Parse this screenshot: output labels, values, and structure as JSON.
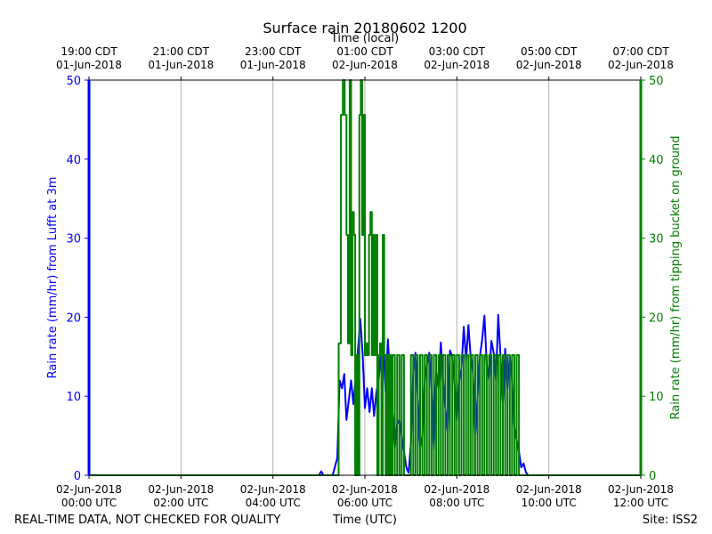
{
  "chart_data": {
    "type": "line",
    "title": "Surface rain 20180602 1200",
    "top_axis_label": "Time (local)",
    "xlabel": "Time (UTC)",
    "ylabel_left": "Rain rate (mm/hr) from Lufft at 3m",
    "ylabel_right": "Rain rate (mm/hr) from tipping bucket on ground",
    "footer_left": "REAL-TIME DATA, NOT CHECKED FOR QUALITY",
    "footer_right": "Site: ISS2",
    "xlim_utc_hours": [
      0,
      12
    ],
    "ylim_left": [
      0,
      50
    ],
    "ylim_right": [
      0,
      50
    ],
    "grid": "vertical only",
    "x_ticks_bottom": [
      {
        "hour": 0,
        "line1": "02-Jun-2018",
        "line2": "00:00 UTC"
      },
      {
        "hour": 2,
        "line1": "02-Jun-2018",
        "line2": "02:00 UTC"
      },
      {
        "hour": 4,
        "line1": "02-Jun-2018",
        "line2": "04:00 UTC"
      },
      {
        "hour": 6,
        "line1": "02-Jun-2018",
        "line2": "06:00 UTC"
      },
      {
        "hour": 8,
        "line1": "02-Jun-2018",
        "line2": "08:00 UTC"
      },
      {
        "hour": 10,
        "line1": "02-Jun-2018",
        "line2": "10:00 UTC"
      },
      {
        "hour": 12,
        "line1": "02-Jun-2018",
        "line2": "12:00 UTC"
      }
    ],
    "x_ticks_top": [
      {
        "hour": 0,
        "line1": "19:00 CDT",
        "line2": "01-Jun-2018"
      },
      {
        "hour": 2,
        "line1": "21:00 CDT",
        "line2": "01-Jun-2018"
      },
      {
        "hour": 4,
        "line1": "23:00 CDT",
        "line2": "01-Jun-2018"
      },
      {
        "hour": 6,
        "line1": "01:00 CDT",
        "line2": "02-Jun-2018"
      },
      {
        "hour": 8,
        "line1": "03:00 CDT",
        "line2": "02-Jun-2018"
      },
      {
        "hour": 10,
        "line1": "05:00 CDT",
        "line2": "02-Jun-2018"
      },
      {
        "hour": 12,
        "line1": "07:00 CDT",
        "line2": "02-Jun-2018"
      }
    ],
    "y_ticks_left": [
      0,
      10,
      20,
      30,
      40,
      50
    ],
    "y_ticks_right": [
      0,
      10,
      20,
      30,
      40,
      50
    ],
    "series": [
      {
        "axis": "left",
        "color": "#0000ff",
        "x": [
          0,
          5.0,
          5.05,
          5.1,
          5.2,
          5.3,
          5.4,
          5.45,
          5.5,
          5.55,
          5.6,
          5.65,
          5.7,
          5.75,
          5.8,
          5.85,
          5.9,
          5.95,
          6.0,
          6.05,
          6.1,
          6.15,
          6.2,
          6.25,
          6.3,
          6.35,
          6.4,
          6.45,
          6.5,
          6.55,
          6.6,
          6.65,
          6.7,
          6.75,
          6.8,
          6.85,
          6.9,
          6.95,
          7.0,
          7.05,
          7.1,
          7.15,
          7.2,
          7.25,
          7.3,
          7.35,
          7.4,
          7.45,
          7.5,
          7.55,
          7.6,
          7.65,
          7.7,
          7.75,
          7.8,
          7.85,
          7.9,
          7.95,
          8.0,
          8.05,
          8.1,
          8.15,
          8.2,
          8.25,
          8.3,
          8.35,
          8.4,
          8.45,
          8.5,
          8.55,
          8.6,
          8.65,
          8.7,
          8.75,
          8.8,
          8.85,
          8.9,
          8.95,
          9.0,
          9.05,
          9.1,
          9.15,
          9.2,
          9.25,
          9.3,
          9.35,
          9.4,
          9.45,
          9.5,
          9.55,
          9.6,
          9.65,
          9.7,
          12.0
        ],
        "y": [
          0,
          0,
          0.5,
          0,
          0,
          0,
          2.2,
          12.0,
          11.0,
          12.8,
          7.0,
          9.5,
          12.0,
          9.0,
          12.5,
          16.0,
          19.8,
          15.5,
          8.5,
          11.0,
          8.0,
          11.0,
          7.5,
          10.5,
          12.0,
          15.5,
          16.2,
          10.5,
          17.2,
          12.0,
          8.0,
          3.5,
          6.5,
          7.0,
          5.0,
          3.0,
          1.0,
          0.3,
          4.0,
          13.0,
          15.5,
          10.0,
          3.5,
          5.0,
          12.0,
          14.0,
          15.5,
          11.0,
          3.0,
          13.0,
          11.0,
          16.8,
          12.0,
          8.5,
          5.5,
          15.8,
          15.0,
          11.5,
          7.0,
          12.0,
          13.5,
          18.8,
          14.5,
          19.0,
          15.0,
          13.0,
          5.0,
          10.0,
          15.0,
          17.2,
          20.2,
          14.0,
          12.0,
          17.0,
          15.5,
          12.0,
          20.3,
          15.0,
          9.0,
          16.0,
          11.0,
          15.0,
          12.0,
          6.0,
          4.5,
          3.0,
          1.0,
          1.5,
          0.4,
          0,
          0,
          0,
          0,
          0
        ]
      },
      {
        "axis": "right",
        "color": "#008000",
        "x": [
          0,
          5.4,
          5.43,
          5.48,
          5.52,
          5.56,
          5.6,
          5.63,
          5.67,
          5.7,
          5.73,
          5.76,
          5.79,
          5.82,
          5.85,
          5.88,
          5.91,
          5.94,
          5.97,
          6.0,
          6.03,
          6.06,
          6.09,
          6.12,
          6.15,
          6.18,
          6.21,
          6.24,
          6.27,
          6.3,
          6.33,
          6.36,
          6.39,
          6.42,
          6.45,
          6.48,
          6.51,
          6.54,
          6.57,
          6.6,
          6.65,
          6.7,
          6.75,
          6.8,
          6.85,
          6.9,
          6.95,
          7.0,
          7.05,
          7.1,
          7.15,
          7.2,
          7.25,
          7.3,
          7.35,
          7.4,
          7.45,
          7.5,
          7.55,
          7.6,
          7.65,
          7.7,
          7.75,
          7.8,
          7.85,
          7.9,
          7.95,
          8.0,
          8.05,
          8.1,
          8.15,
          8.2,
          8.25,
          8.3,
          8.35,
          8.4,
          8.45,
          8.5,
          8.55,
          8.6,
          8.65,
          8.7,
          8.75,
          8.8,
          8.85,
          8.9,
          8.95,
          9.0,
          9.05,
          9.1,
          9.15,
          9.2,
          9.25,
          9.3,
          9.35,
          12.0
        ],
        "y": [
          0,
          0,
          16.7,
          45.6,
          50.0,
          45.6,
          30.4,
          16.7,
          50.0,
          15.2,
          33.3,
          30.4,
          0,
          15.2,
          0,
          45.6,
          50.0,
          30.4,
          45.6,
          15.2,
          16.7,
          15.2,
          30.4,
          33.3,
          15.2,
          30.4,
          15.2,
          30.4,
          0,
          15.2,
          16.7,
          0,
          30.4,
          15.2,
          0,
          15.2,
          0,
          15.2,
          0,
          15.2,
          0,
          15.2,
          0,
          15.2,
          0,
          0,
          0,
          15.2,
          0,
          15.2,
          0,
          15.2,
          0,
          15.2,
          0,
          15.2,
          0,
          15.2,
          0,
          15.2,
          0,
          15.2,
          0,
          15.2,
          0,
          15.2,
          0,
          15.2,
          0,
          15.2,
          0,
          15.2,
          0,
          15.2,
          0,
          15.2,
          0,
          15.2,
          0,
          15.2,
          0,
          15.2,
          0,
          15.2,
          0,
          15.2,
          0,
          15.2,
          0,
          15.2,
          0,
          15.2,
          0,
          15.2,
          0,
          0
        ]
      }
    ]
  }
}
